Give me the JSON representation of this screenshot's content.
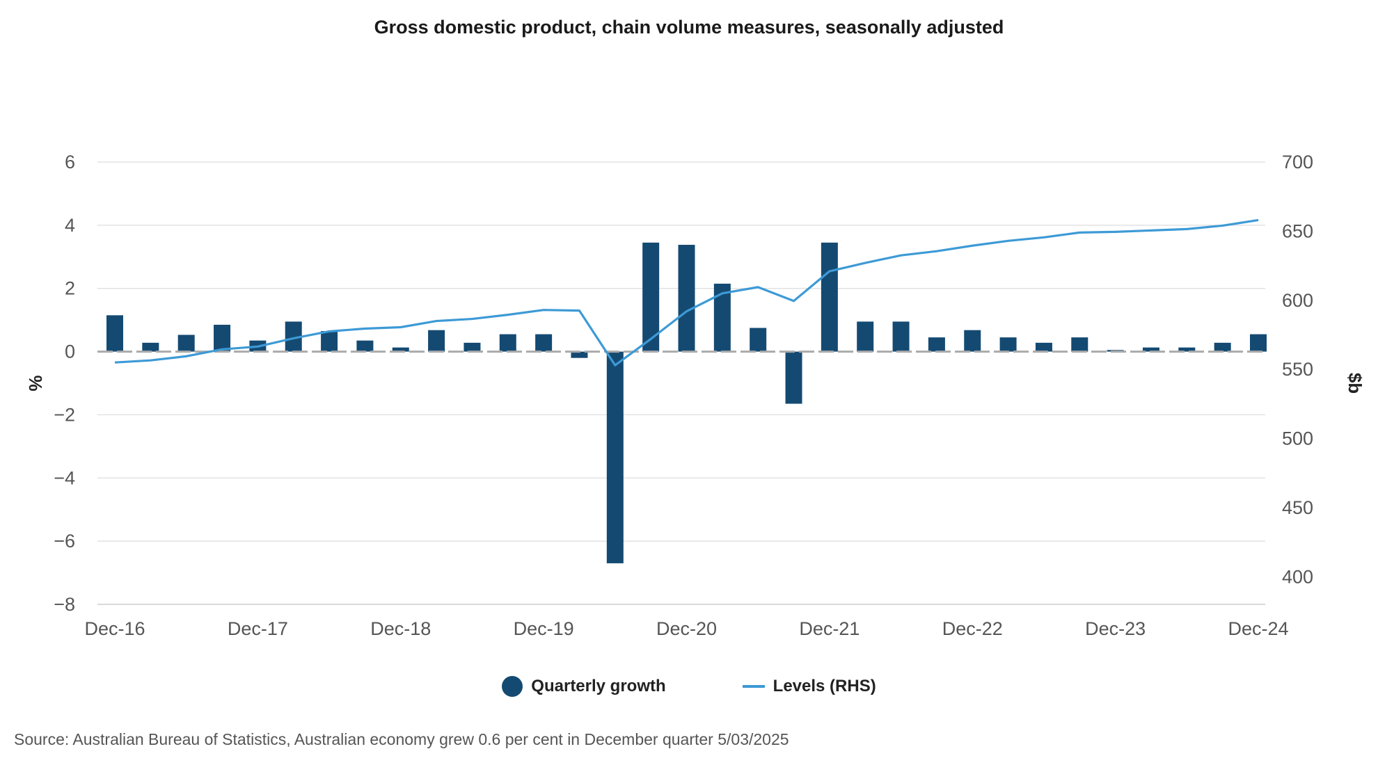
{
  "chart_data": {
    "type": "bar",
    "title": "Gross domestic product, chain volume measures, seasonally adjusted",
    "ylabel": "%",
    "y2label": "$b",
    "ylim": [
      -8,
      6
    ],
    "y2lim": [
      380,
      700
    ],
    "yticks": [
      "6",
      "4",
      "2",
      "0",
      "-2",
      "-4",
      "-6",
      "-8"
    ],
    "y2ticks": [
      "700",
      "650",
      "600",
      "550",
      "500",
      "450",
      "400"
    ],
    "xtick_labels": [
      "Dec-16",
      "Dec-17",
      "Dec-18",
      "Dec-19",
      "Dec-20",
      "Dec-21",
      "Dec-22",
      "Dec-23",
      "Dec-24"
    ],
    "categories": [
      "Dec-16",
      "Mar-17",
      "Jun-17",
      "Sep-17",
      "Dec-17",
      "Mar-18",
      "Jun-18",
      "Sep-18",
      "Dec-18",
      "Mar-19",
      "Jun-19",
      "Sep-19",
      "Dec-19",
      "Mar-20",
      "Jun-20",
      "Sep-20",
      "Dec-20",
      "Mar-21",
      "Jun-21",
      "Sep-21",
      "Dec-21",
      "Mar-22",
      "Jun-22",
      "Sep-22",
      "Dec-22",
      "Mar-23",
      "Jun-23",
      "Sep-23",
      "Dec-23",
      "Mar-24",
      "Jun-24",
      "Sep-24",
      "Dec-24"
    ],
    "series": [
      {
        "name": "Quarterly growth",
        "type": "bar",
        "axis": "left",
        "color": "#144a72",
        "values": [
          1.15,
          0.28,
          0.53,
          0.85,
          0.35,
          0.95,
          0.65,
          0.35,
          0.13,
          0.68,
          0.28,
          0.55,
          0.55,
          -0.2,
          -6.7,
          3.45,
          3.38,
          2.15,
          0.75,
          -1.65,
          3.45,
          0.95,
          0.95,
          0.45,
          0.68,
          0.45,
          0.28,
          0.45,
          0.05,
          0.13,
          0.13,
          0.28,
          0.55
        ]
      },
      {
        "name": "Levels (RHS)",
        "type": "line",
        "axis": "right",
        "color": "#3d9ad6",
        "values": [
          555.0,
          556.5,
          559.5,
          564.5,
          566.5,
          572.5,
          577.5,
          579.5,
          580.5,
          585.0,
          586.5,
          589.5,
          593.0,
          592.5,
          553.0,
          572.0,
          592.0,
          605.0,
          609.5,
          599.5,
          621.0,
          627.0,
          632.5,
          635.5,
          639.5,
          643.0,
          645.5,
          649.0,
          649.5,
          650.5,
          651.5,
          654.0,
          658.0
        ]
      }
    ],
    "zero_line_color": "#aaaaaa",
    "grid": true,
    "legend_position": "bottom-center"
  },
  "legend": {
    "bar_label": "Quarterly growth",
    "line_label": "Levels (RHS)",
    "bar_color": "#144a72",
    "line_color": "#3d9ad6"
  },
  "source": "Source: Australian Bureau of Statistics, Australian economy grew 0.6 per cent in December quarter 5/03/2025"
}
